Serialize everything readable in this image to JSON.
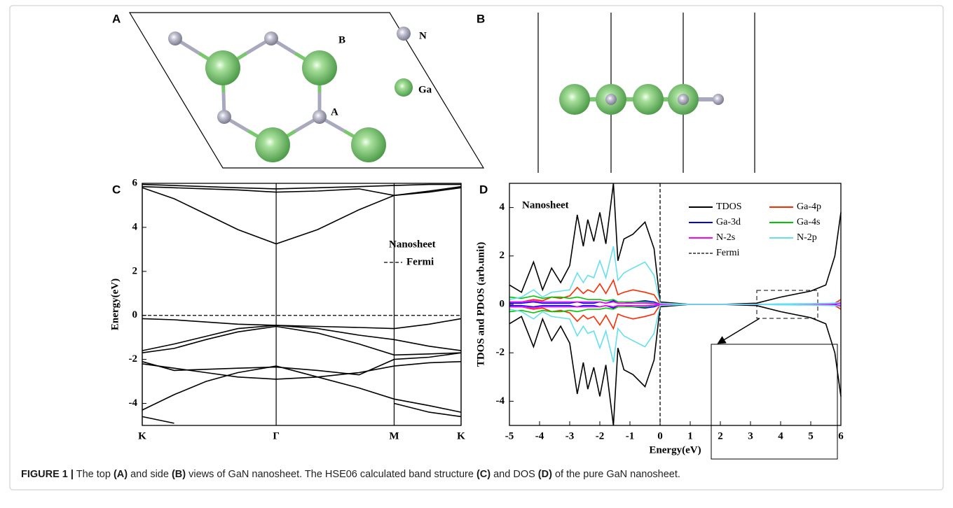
{
  "panel_a": {
    "label": "A",
    "site_labels": [
      "B",
      "A"
    ],
    "legend": [
      "N",
      "Ga"
    ]
  },
  "panel_b": {
    "label": "B"
  },
  "chart_data": [
    {
      "type": "line",
      "panel_label": "C",
      "ylabel": "Energy(eV)",
      "annotation": "Nanosheet",
      "x": [
        0,
        0.1,
        0.2,
        0.3,
        0.42,
        0.55,
        0.68,
        0.79,
        0.9,
        1
      ],
      "xlim": [
        0,
        1
      ],
      "xticks": [
        {
          "value": 0,
          "label": "K"
        },
        {
          "value": 0.42,
          "label": "Γ"
        },
        {
          "value": 0.79,
          "label": "M"
        },
        {
          "value": 1,
          "label": "K"
        }
      ],
      "ylim": [
        -5,
        6
      ],
      "yticks": [
        -4,
        -2,
        0,
        2,
        4,
        6
      ],
      "grid": "x",
      "reference_line": {
        "axis": "y",
        "value": 0,
        "label": "Fermi"
      },
      "series": [
        {
          "color": "#000000",
          "values": [
            5.8,
            5.3,
            4.6,
            3.9,
            3.25,
            3.9,
            4.8,
            5.45,
            5.65,
            5.85
          ]
        },
        {
          "color": "#000000",
          "values": [
            5.85,
            5.8,
            5.75,
            5.7,
            5.6,
            5.65,
            5.75,
            5.45,
            5.6,
            5.8
          ]
        },
        {
          "color": "#000000",
          "values": [
            5.95,
            5.9,
            5.85,
            5.8,
            5.75,
            5.8,
            5.85,
            5.9,
            5.95,
            5.95
          ]
        },
        {
          "color": "#000000",
          "values": [
            -0.15,
            -0.2,
            -0.3,
            -0.4,
            -0.45,
            -0.5,
            -0.55,
            -0.6,
            -0.4,
            -0.15
          ]
        },
        {
          "color": "#000000",
          "values": [
            -1.6,
            -1.3,
            -0.95,
            -0.6,
            -0.45,
            -0.6,
            -0.9,
            -1.1,
            -1.4,
            -1.6
          ]
        },
        {
          "color": "#000000",
          "values": [
            -1.7,
            -1.5,
            -1.1,
            -0.75,
            -0.5,
            -0.8,
            -1.3,
            -1.8,
            -1.75,
            -1.7
          ]
        },
        {
          "color": "#000000",
          "values": [
            -2.1,
            -2.5,
            -2.45,
            -2.4,
            -2.35,
            -2.5,
            -2.7,
            -2.0,
            -1.9,
            -1.7
          ]
        },
        {
          "color": "#000000",
          "values": [
            -2.2,
            -2.4,
            -2.6,
            -2.8,
            -2.9,
            -2.8,
            -2.6,
            -2.3,
            -2.15,
            -2.1
          ]
        },
        {
          "color": "#000000",
          "values": [
            -4.3,
            -3.6,
            -3.0,
            -2.6,
            -2.3,
            -2.8,
            -3.3,
            -3.8,
            -4.1,
            -4.4
          ]
        },
        {
          "color": "#000000",
          "values": [
            -4.6,
            -4.9,
            null,
            null,
            null,
            null,
            null,
            -4.0,
            -4.4,
            -4.6
          ]
        }
      ]
    },
    {
      "type": "line",
      "panel_label": "D",
      "xlabel": "Energy(eV)",
      "ylabel": "TDOS and PDOS (arb.unit)",
      "annotation": "Nanosheet",
      "x": [
        -5,
        -4.6,
        -4.2,
        -3.9,
        -3.6,
        -3.3,
        -3.0,
        -2.75,
        -2.55,
        -2.4,
        -2.2,
        -2.0,
        -1.8,
        -1.55,
        -1.4,
        -1.2,
        -0.9,
        -0.5,
        -0.2,
        0,
        1,
        2,
        3.2,
        4,
        5,
        5.5,
        5.8,
        6
      ],
      "xlim": [
        -5,
        6
      ],
      "xticks": [
        -5,
        -4,
        -3,
        -2,
        -1,
        0,
        1,
        2,
        3,
        4,
        5,
        6
      ],
      "ylim": [
        -5,
        5
      ],
      "yticks": [
        -4,
        -2,
        0,
        2,
        4
      ],
      "reference_line": {
        "axis": "x",
        "value": 0,
        "label": "Fermi"
      },
      "series": [
        {
          "name": "TDOS",
          "color": "#000000",
          "values": [
            0.8,
            0.5,
            1.75,
            0.6,
            1.5,
            0.9,
            1.6,
            3.7,
            2.4,
            3.5,
            2.6,
            3.8,
            2.5,
            5.0,
            1.8,
            2.7,
            2.9,
            3.4,
            2.3,
            0.1,
            0,
            0,
            0.05,
            0.3,
            0.55,
            0.8,
            2.0,
            3.8
          ],
          "values_down": [
            -0.8,
            -0.5,
            -1.75,
            -0.6,
            -1.5,
            -0.9,
            -1.6,
            -3.7,
            -2.4,
            -3.5,
            -2.6,
            -3.8,
            -2.5,
            -5.0,
            -1.8,
            -2.7,
            -2.9,
            -3.4,
            -2.3,
            -0.1,
            0,
            0,
            -0.05,
            -0.3,
            -0.55,
            -0.8,
            -2.0,
            -3.8
          ]
        },
        {
          "name": "Ga-4p",
          "color": "#ff2a00",
          "values": [
            0.1,
            0.1,
            0.2,
            0.15,
            0.3,
            0.25,
            0.35,
            0.7,
            0.45,
            0.6,
            0.5,
            0.85,
            0.45,
            1.0,
            0.4,
            0.5,
            0.6,
            0.5,
            0.4,
            0.02,
            0,
            0,
            0,
            0.01,
            0.02,
            0.03,
            0.05,
            0.2
          ],
          "values_down": [
            -0.1,
            -0.1,
            -0.2,
            -0.15,
            -0.3,
            -0.25,
            -0.35,
            -0.7,
            -0.45,
            -0.6,
            -0.5,
            -0.85,
            -0.45,
            -1.0,
            -0.4,
            -0.5,
            -0.6,
            -0.5,
            -0.4,
            -0.02,
            0,
            0,
            0,
            -0.01,
            -0.02,
            -0.03,
            -0.05,
            -0.2
          ]
        },
        {
          "name": "Ga-3d",
          "color": "#0000ff",
          "values": [
            0.05,
            0.05,
            0.1,
            0.05,
            0.05,
            0.05,
            0.05,
            0.1,
            0.05,
            0.05,
            0.05,
            0.1,
            0.05,
            0.15,
            0.05,
            0.05,
            0.1,
            0.15,
            0.1,
            0.01,
            0,
            0,
            0,
            0.005,
            0.01,
            0.01,
            0.02,
            0.05
          ],
          "values_down": [
            -0.05,
            -0.05,
            -0.1,
            -0.05,
            -0.05,
            -0.05,
            -0.05,
            -0.1,
            -0.05,
            -0.05,
            -0.05,
            -0.1,
            -0.05,
            -0.15,
            -0.05,
            -0.05,
            -0.1,
            -0.15,
            -0.1,
            -0.01,
            0,
            0,
            0,
            -0.005,
            -0.01,
            -0.01,
            -0.02,
            -0.05
          ]
        },
        {
          "name": "Ga-4s",
          "color": "#00c800",
          "values": [
            0.3,
            0.25,
            0.35,
            0.25,
            0.3,
            0.3,
            0.25,
            0.3,
            0.25,
            0.2,
            0.2,
            0.2,
            0.15,
            0.2,
            0.1,
            0.1,
            0.1,
            0.1,
            0.05,
            0.01,
            0,
            0,
            0,
            0.01,
            0.02,
            0.03,
            0.05,
            0.1
          ],
          "values_down": [
            -0.3,
            -0.25,
            -0.35,
            -0.25,
            -0.3,
            -0.3,
            -0.25,
            -0.3,
            -0.25,
            -0.2,
            -0.2,
            -0.2,
            -0.15,
            -0.2,
            -0.1,
            -0.1,
            -0.1,
            -0.1,
            -0.05,
            -0.01,
            0,
            0,
            0,
            -0.01,
            -0.02,
            -0.03,
            -0.05,
            -0.1
          ]
        },
        {
          "name": "N-2s",
          "color": "#ff00ff",
          "values": [
            0.1,
            0.1,
            0.15,
            0.1,
            0.1,
            0.1,
            0.1,
            0.1,
            0.1,
            0.1,
            0.1,
            0.1,
            0.05,
            0.1,
            0.05,
            0.05,
            0.05,
            0.05,
            0.03,
            0.01,
            0,
            0,
            0,
            0.01,
            0.015,
            0.02,
            0.03,
            0.05
          ],
          "values_down": [
            -0.1,
            -0.1,
            -0.15,
            -0.1,
            -0.1,
            -0.1,
            -0.1,
            -0.1,
            -0.1,
            -0.1,
            -0.1,
            -0.1,
            -0.05,
            -0.1,
            -0.05,
            -0.05,
            -0.05,
            -0.05,
            -0.03,
            -0.01,
            0,
            0,
            0,
            -0.01,
            -0.015,
            -0.02,
            -0.03,
            -0.05
          ]
        },
        {
          "name": "N-2p",
          "color": "#66e0ee",
          "values": [
            0.2,
            0.3,
            0.6,
            0.3,
            0.5,
            0.55,
            0.6,
            1.3,
            0.9,
            1.2,
            1.1,
            1.8,
            1.1,
            2.4,
            1.0,
            1.3,
            1.5,
            1.75,
            1.2,
            0.05,
            0,
            0,
            0,
            0.02,
            0.03,
            0.04,
            0.05,
            0.1
          ],
          "values_down": [
            -0.2,
            -0.3,
            -0.6,
            -0.3,
            -0.5,
            -0.55,
            -0.6,
            -1.3,
            -0.9,
            -1.2,
            -1.1,
            -1.8,
            -1.1,
            -2.4,
            -1.0,
            -1.3,
            -1.5,
            -1.75,
            -1.2,
            -0.05,
            0,
            0,
            0,
            -0.02,
            -0.03,
            -0.04,
            -0.05,
            -0.1
          ]
        }
      ]
    }
  ],
  "caption": {
    "label": "FIGURE 1 |",
    "parts": [
      " The top ",
      "(A)",
      " and side ",
      "(B)",
      " views of GaN nanosheet. The HSE06 calculated band structure ",
      "(C)",
      " and DOS ",
      "(D)",
      " of the pure GaN nanosheet."
    ]
  }
}
